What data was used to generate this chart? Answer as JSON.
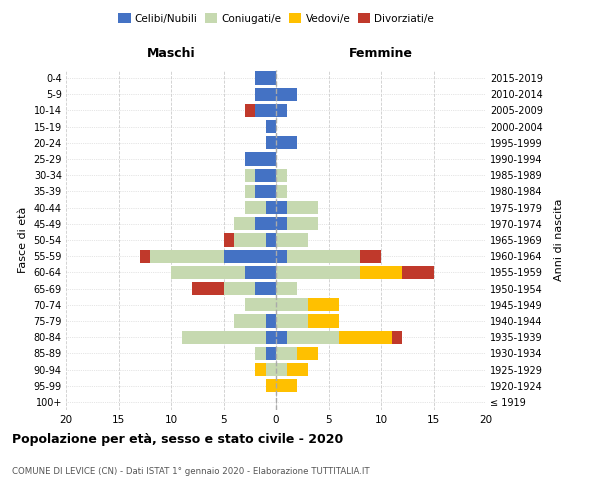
{
  "age_groups": [
    "100+",
    "95-99",
    "90-94",
    "85-89",
    "80-84",
    "75-79",
    "70-74",
    "65-69",
    "60-64",
    "55-59",
    "50-54",
    "45-49",
    "40-44",
    "35-39",
    "30-34",
    "25-29",
    "20-24",
    "15-19",
    "10-14",
    "5-9",
    "0-4"
  ],
  "birth_years": [
    "≤ 1919",
    "1920-1924",
    "1925-1929",
    "1930-1934",
    "1935-1939",
    "1940-1944",
    "1945-1949",
    "1950-1954",
    "1955-1959",
    "1960-1964",
    "1965-1969",
    "1970-1974",
    "1975-1979",
    "1980-1984",
    "1985-1989",
    "1990-1994",
    "1995-1999",
    "2000-2004",
    "2005-2009",
    "2010-2014",
    "2015-2019"
  ],
  "maschi_celibe": [
    0,
    0,
    0,
    1,
    1,
    1,
    0,
    2,
    3,
    5,
    1,
    2,
    1,
    2,
    2,
    3,
    1,
    1,
    2,
    2,
    2
  ],
  "maschi_coniugato": [
    0,
    0,
    1,
    1,
    8,
    3,
    3,
    3,
    7,
    7,
    3,
    2,
    2,
    1,
    1,
    0,
    0,
    0,
    0,
    0,
    0
  ],
  "maschi_vedovo": [
    0,
    1,
    1,
    0,
    0,
    0,
    0,
    0,
    0,
    0,
    0,
    0,
    0,
    0,
    0,
    0,
    0,
    0,
    0,
    0,
    0
  ],
  "maschi_divorziato": [
    0,
    0,
    0,
    0,
    0,
    0,
    0,
    3,
    0,
    1,
    1,
    0,
    0,
    0,
    0,
    0,
    0,
    0,
    1,
    0,
    0
  ],
  "femmine_celibe": [
    0,
    0,
    0,
    0,
    1,
    0,
    0,
    0,
    0,
    1,
    0,
    1,
    1,
    0,
    0,
    0,
    2,
    0,
    1,
    2,
    0
  ],
  "femmine_coniugata": [
    0,
    0,
    1,
    2,
    5,
    3,
    3,
    2,
    8,
    7,
    3,
    3,
    3,
    1,
    1,
    0,
    0,
    0,
    0,
    0,
    0
  ],
  "femmine_vedova": [
    0,
    2,
    2,
    2,
    5,
    3,
    3,
    0,
    4,
    0,
    0,
    0,
    0,
    0,
    0,
    0,
    0,
    0,
    0,
    0,
    0
  ],
  "femmine_divorziata": [
    0,
    0,
    0,
    0,
    1,
    0,
    0,
    0,
    3,
    2,
    0,
    0,
    0,
    0,
    0,
    0,
    0,
    0,
    0,
    0,
    0
  ],
  "colors": {
    "celibe": "#4472C4",
    "coniugato": "#c6d9b0",
    "vedovo": "#ffc000",
    "divorziato": "#c0392b"
  },
  "xlim": 20,
  "title": "Popolazione per età, sesso e stato civile - 2020",
  "subtitle": "COMUNE DI LEVICE (CN) - Dati ISTAT 1° gennaio 2020 - Elaborazione TUTTITALIA.IT",
  "ylabel_left": "Fasce di età",
  "ylabel_right": "Anni di nascita",
  "xlabel_left": "Maschi",
  "xlabel_right": "Femmine",
  "bg_color": "#ffffff",
  "grid_color": "#cccccc",
  "legend_labels": [
    "Celibi/Nubili",
    "Coniugati/e",
    "Vedovi/e",
    "Divorziati/e"
  ]
}
